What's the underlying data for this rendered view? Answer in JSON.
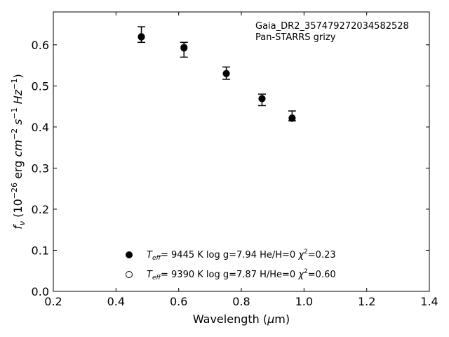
{
  "chart_data": {
    "type": "scatter",
    "annotation_lines": [
      "Gaia_DR2_357479272034582528",
      "Pan-STARRS grizy"
    ],
    "xlabel": "Wavelength (μm)",
    "ylabel": "f_ν (10^-26 erg cm^-2 s^-1 Hz^-1)",
    "xlim": [
      0.2,
      1.4
    ],
    "ylim": [
      0.0,
      0.68
    ],
    "xticks": [
      "0.2",
      "0.4",
      "0.6",
      "0.8",
      "1.0",
      "1.2",
      "1.4"
    ],
    "yticks": [
      "0.0",
      "0.1",
      "0.2",
      "0.3",
      "0.4",
      "0.5",
      "0.6"
    ],
    "grid": false,
    "legend_placement": "lower-center",
    "observed": {
      "marker": "errorbar",
      "points": [
        {
          "x": 0.481,
          "y": 0.625,
          "yerr": 0.019
        },
        {
          "x": 0.617,
          "y": 0.588,
          "yerr": 0.018
        },
        {
          "x": 0.752,
          "y": 0.531,
          "yerr": 0.015
        },
        {
          "x": 0.866,
          "y": 0.466,
          "yerr": 0.014
        },
        {
          "x": 0.962,
          "y": 0.427,
          "yerr": 0.012
        }
      ]
    },
    "series": [
      {
        "name": "Teff= 9445 K log g=7.94 He/H=0 χ2=0.23",
        "legend_parts": {
          "teff": "9445 K",
          "logg": "log g=7.94",
          "comp": "He/H=0",
          "chi2": "=0.23"
        },
        "marker": "filled-circle",
        "color": "#000000",
        "points": [
          {
            "x": 0.481,
            "y": 0.619
          },
          {
            "x": 0.617,
            "y": 0.592
          },
          {
            "x": 0.752,
            "y": 0.53
          },
          {
            "x": 0.866,
            "y": 0.469
          },
          {
            "x": 0.962,
            "y": 0.421
          }
        ]
      },
      {
        "name": "Teff= 9390 K log g=7.87 H/He=0 χ2=0.60",
        "legend_parts": {
          "teff": "9390 K",
          "logg": "log g=7.87",
          "comp": "H/He=0",
          "chi2": "=0.60"
        },
        "marker": "open-circle",
        "color": "#000000",
        "points": [
          {
            "x": 0.481,
            "y": 0.62
          },
          {
            "x": 0.617,
            "y": 0.594
          },
          {
            "x": 0.752,
            "y": 0.53
          },
          {
            "x": 0.866,
            "y": 0.469
          },
          {
            "x": 0.962,
            "y": 0.422
          }
        ]
      }
    ]
  }
}
